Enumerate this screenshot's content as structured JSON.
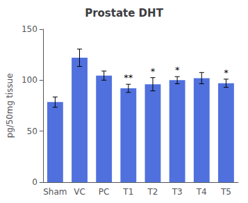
{
  "chart_data": {
    "type": "bar",
    "title": "Prostate DHT",
    "ylabel": "pg/50mg tissue",
    "categories": [
      "Sham",
      "VC",
      "PC",
      "T1",
      "T2",
      "T3",
      "T4",
      "T5"
    ],
    "values": [
      78.5,
      122.0,
      104.5,
      92.0,
      96.0,
      100.0,
      102.0,
      97.0
    ],
    "errors": [
      5.0,
      8.5,
      4.5,
      4.0,
      6.5,
      3.5,
      5.5,
      4.0
    ],
    "annotations": [
      {
        "category": "T1",
        "text": "**"
      },
      {
        "category": "T2",
        "text": "*"
      },
      {
        "category": "T3",
        "text": "*"
      },
      {
        "category": "T5",
        "text": "*"
      }
    ],
    "ylim": [
      0,
      150
    ],
    "yticks": [
      0,
      50,
      100,
      150
    ],
    "grid": false
  }
}
